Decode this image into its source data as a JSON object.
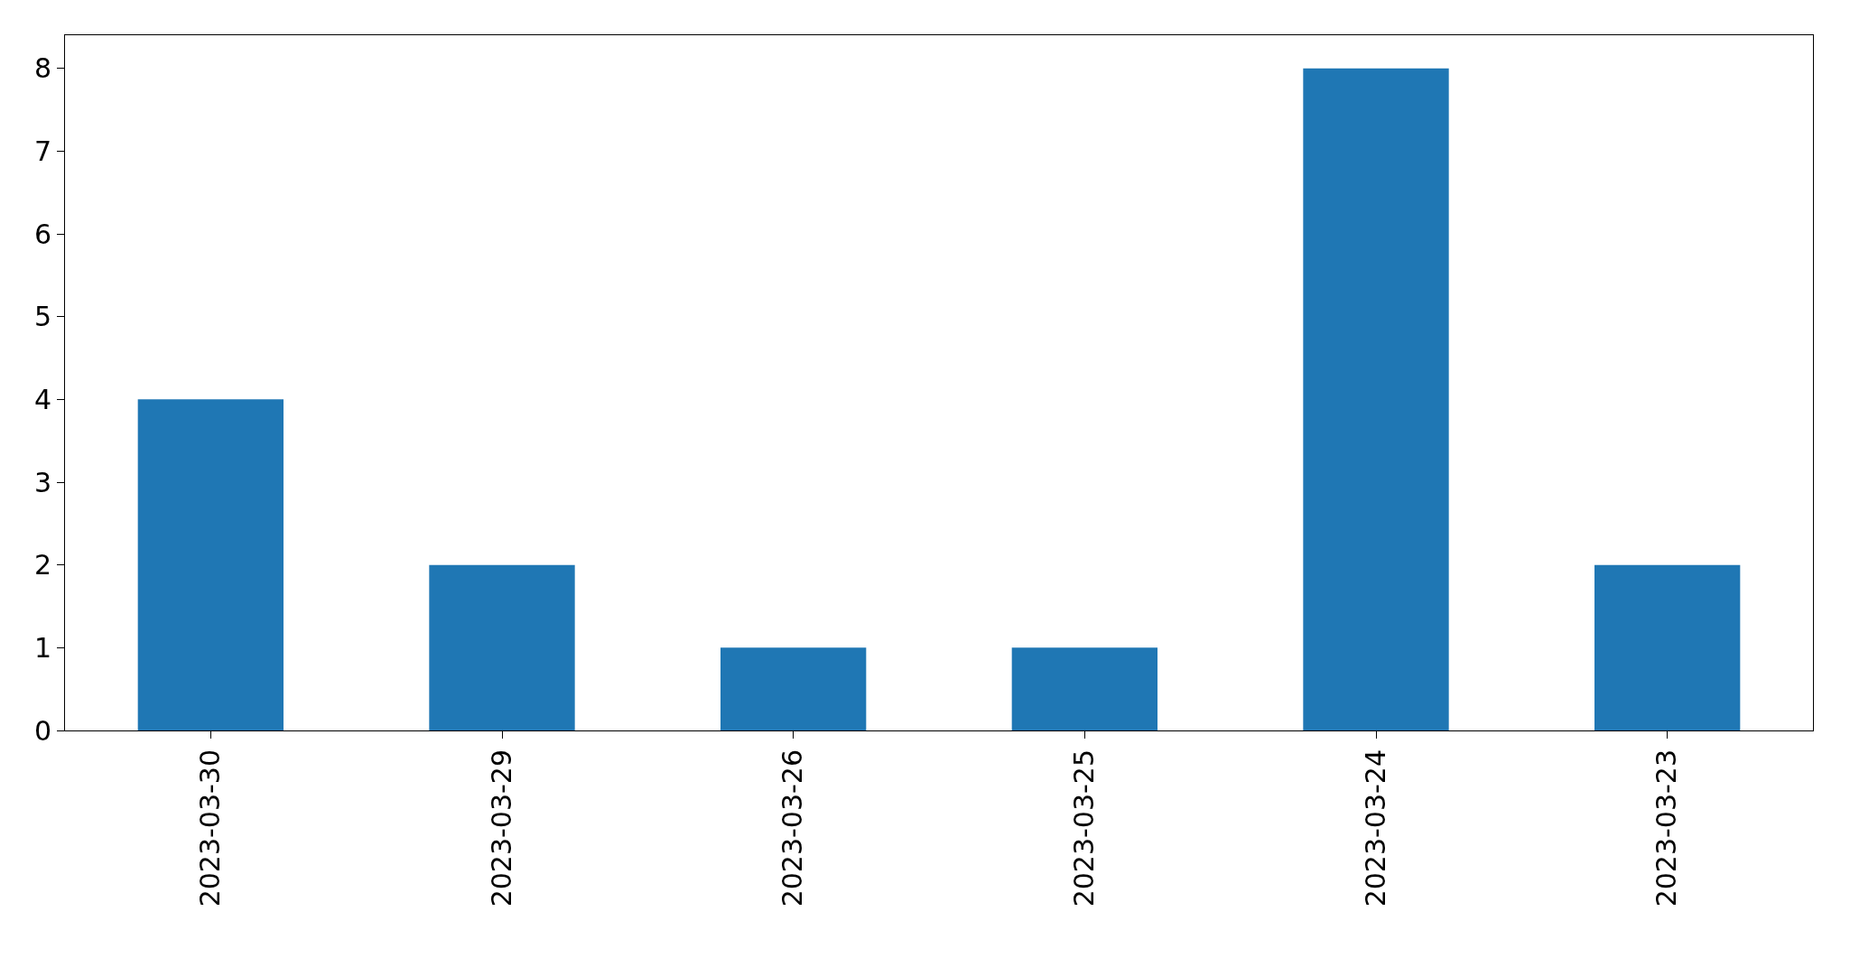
{
  "chart_data": {
    "type": "bar",
    "categories": [
      "2023-03-30",
      "2023-03-29",
      "2023-03-26",
      "2023-03-25",
      "2023-03-24",
      "2023-03-23"
    ],
    "values": [
      4,
      2,
      1,
      1,
      8,
      2
    ],
    "color": "#1f77b4",
    "ylim": [
      0,
      8.4
    ],
    "yticks": [
      0,
      1,
      2,
      3,
      4,
      5,
      6,
      7,
      8
    ]
  }
}
